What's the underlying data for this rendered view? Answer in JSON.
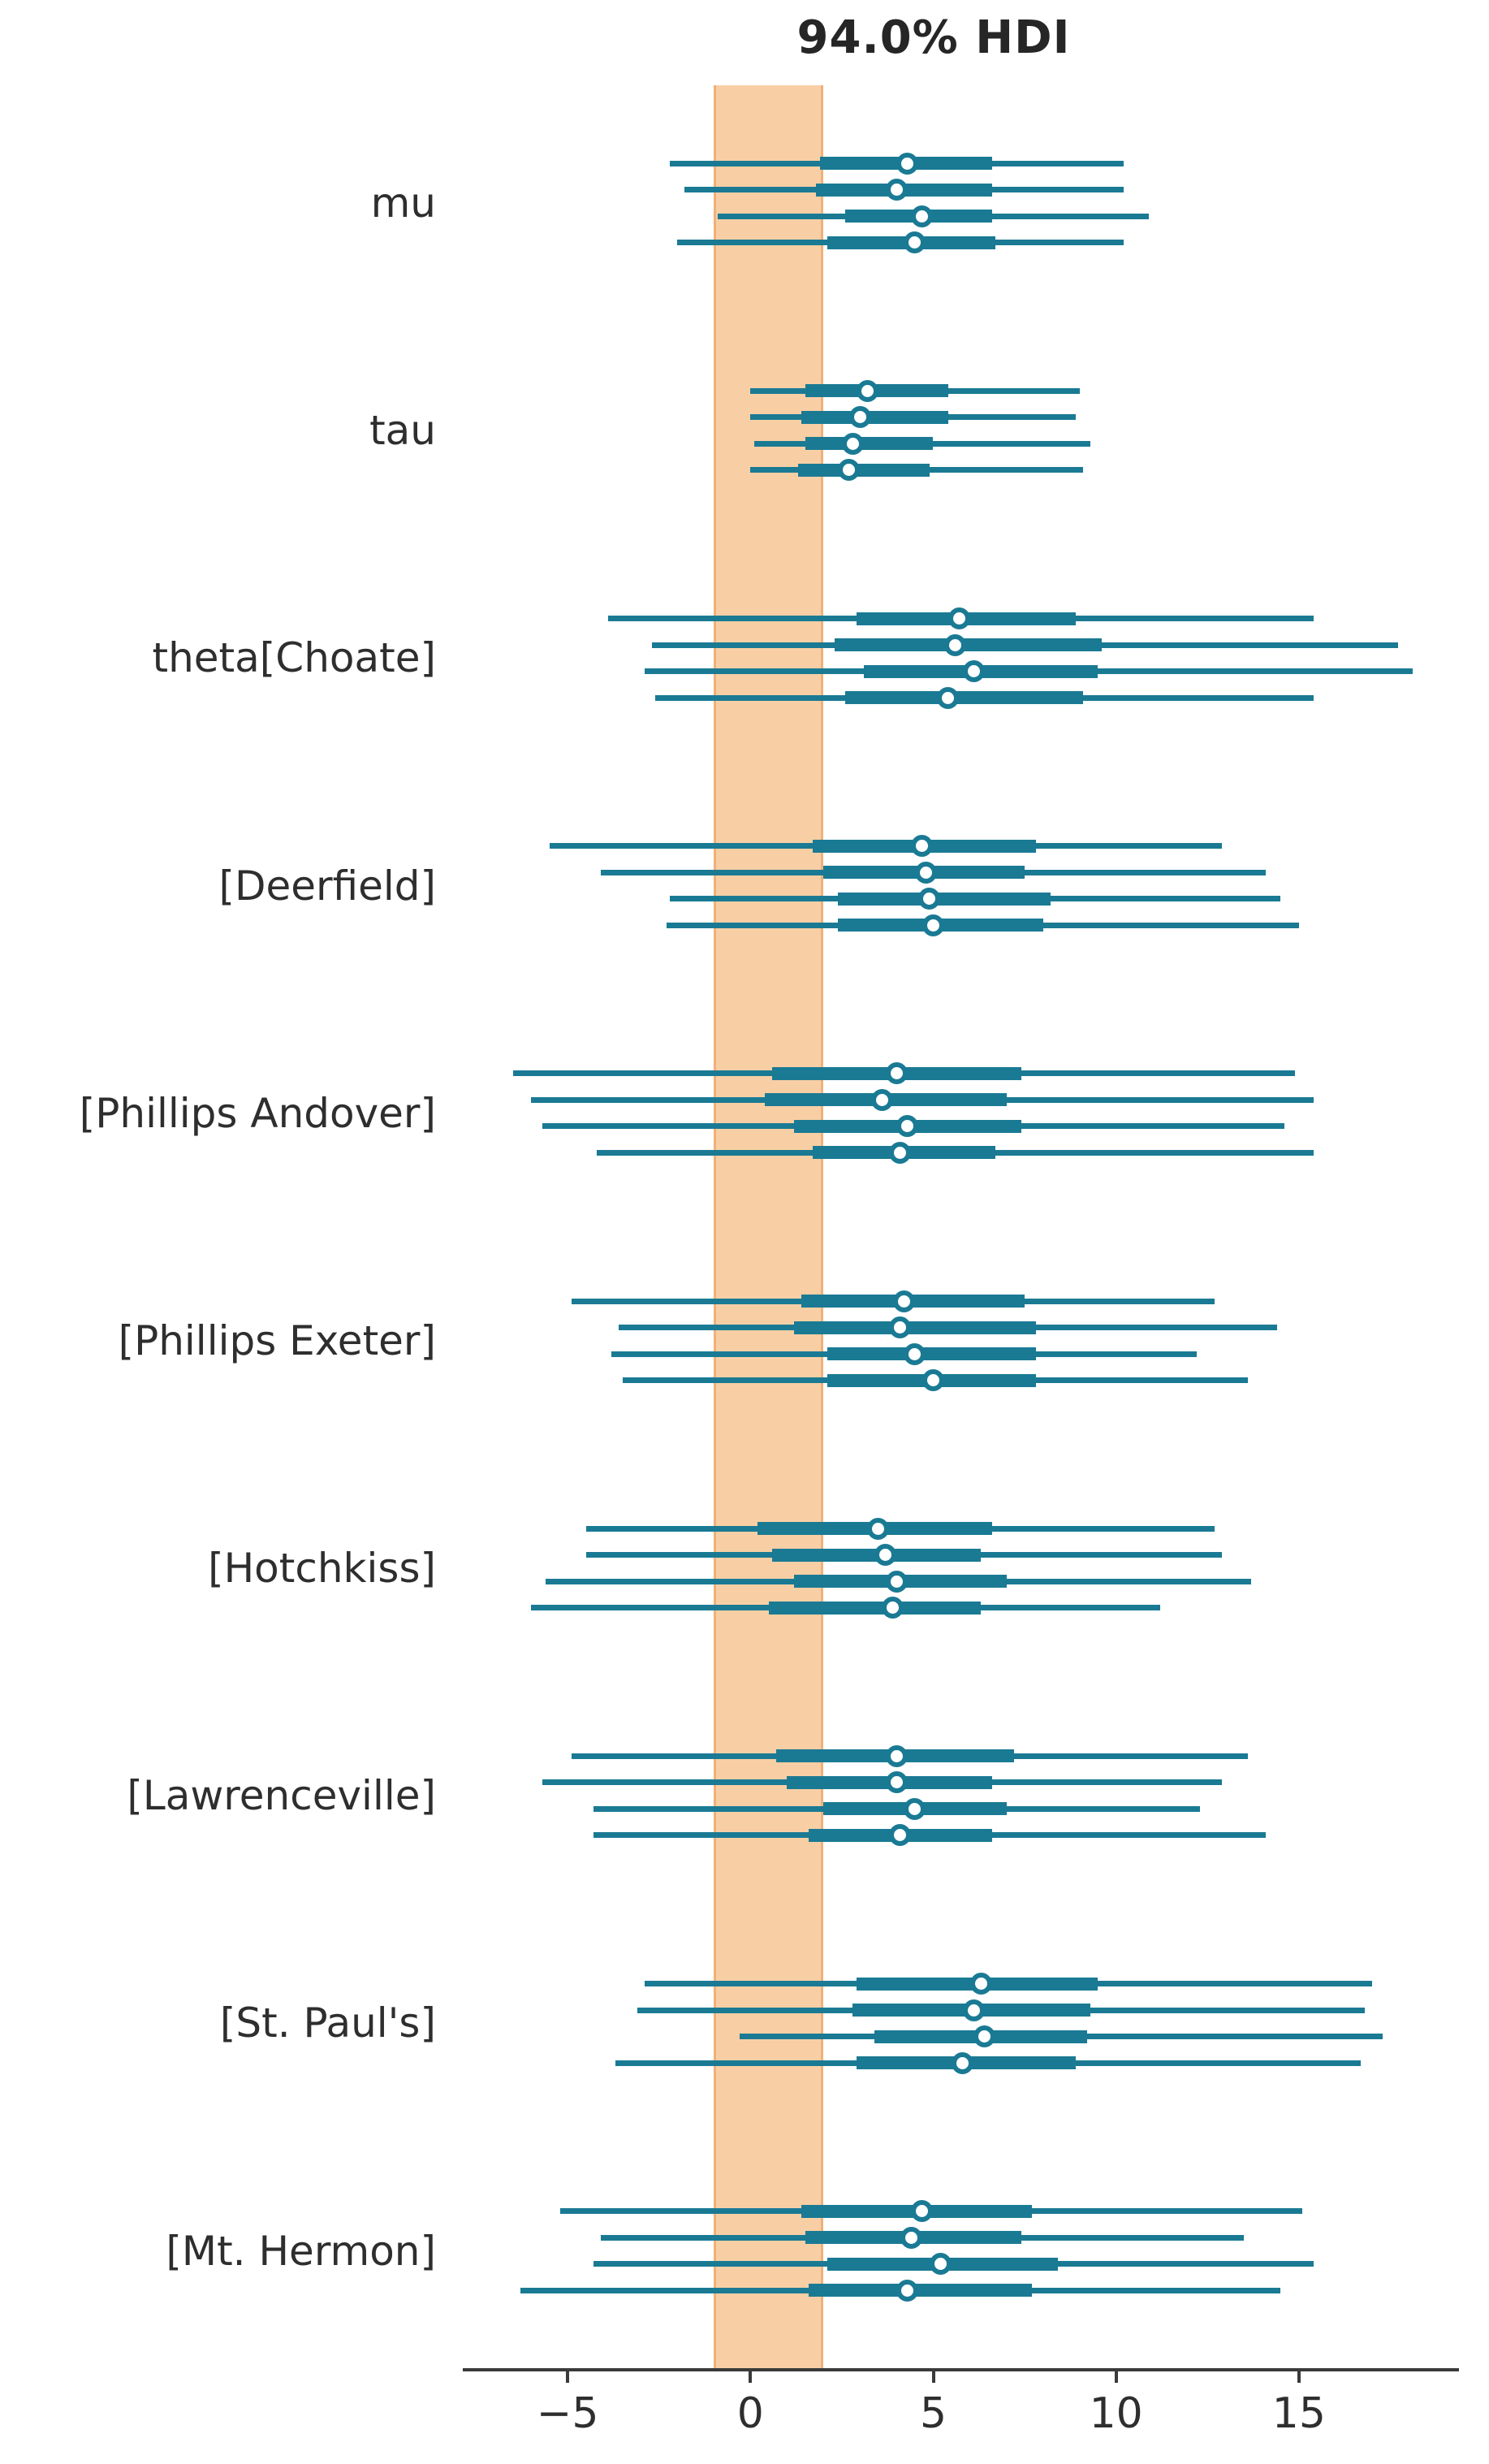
{
  "title": "94.0% HDI",
  "colors": {
    "line": "#1a7a94",
    "band_fill": "#f8cfa4",
    "band_edge": "#f0b07a",
    "axis": "#3a3a3a",
    "text": "#2e2e2e"
  },
  "axis": {
    "tick_values": [
      -5,
      0,
      5,
      10,
      15
    ],
    "tick_labels": [
      "−5",
      "0",
      "5",
      "10",
      "15"
    ],
    "xlim": [
      -7.8,
      19.6
    ]
  },
  "chart_data": {
    "type": "forest",
    "title": "94.0% HDI",
    "hdi_prob": 0.94,
    "rope": [
      -1,
      2
    ],
    "chains_per_parameter": 4,
    "legend_position": "none",
    "grid": false,
    "parameters": [
      {
        "label": "mu",
        "chains": [
          {
            "hdi": [
              -2.2,
              10.2
            ],
            "quartile": [
              1.9,
              6.6
            ],
            "point": 4.3
          },
          {
            "hdi": [
              -1.8,
              10.2
            ],
            "quartile": [
              1.8,
              6.6
            ],
            "point": 4.0
          },
          {
            "hdi": [
              -0.9,
              10.9
            ],
            "quartile": [
              2.6,
              6.6
            ],
            "point": 4.7
          },
          {
            "hdi": [
              -2.0,
              10.2
            ],
            "quartile": [
              2.1,
              6.7
            ],
            "point": 4.5
          }
        ]
      },
      {
        "label": "tau",
        "chains": [
          {
            "hdi": [
              0.0,
              9.0
            ],
            "quartile": [
              1.5,
              5.4
            ],
            "point": 3.2
          },
          {
            "hdi": [
              0.0,
              8.9
            ],
            "quartile": [
              1.4,
              5.4
            ],
            "point": 3.0
          },
          {
            "hdi": [
              0.1,
              9.3
            ],
            "quartile": [
              1.5,
              5.0
            ],
            "point": 2.8
          },
          {
            "hdi": [
              0.0,
              9.1
            ],
            "quartile": [
              1.3,
              4.9
            ],
            "point": 2.7
          }
        ]
      },
      {
        "label": "theta[Choate]",
        "chains": [
          {
            "hdi": [
              -3.9,
              15.4
            ],
            "quartile": [
              2.9,
              8.9
            ],
            "point": 5.7
          },
          {
            "hdi": [
              -2.7,
              17.7
            ],
            "quartile": [
              2.3,
              9.6
            ],
            "point": 5.6
          },
          {
            "hdi": [
              -2.9,
              18.1
            ],
            "quartile": [
              3.1,
              9.5
            ],
            "point": 6.1
          },
          {
            "hdi": [
              -2.6,
              15.4
            ],
            "quartile": [
              2.6,
              9.1
            ],
            "point": 5.4
          }
        ]
      },
      {
        "label": "[Deerfield]",
        "chains": [
          {
            "hdi": [
              -5.5,
              12.9
            ],
            "quartile": [
              1.7,
              7.8
            ],
            "point": 4.7
          },
          {
            "hdi": [
              -4.1,
              14.1
            ],
            "quartile": [
              2.0,
              7.5
            ],
            "point": 4.8
          },
          {
            "hdi": [
              -2.2,
              14.5
            ],
            "quartile": [
              2.4,
              8.2
            ],
            "point": 4.9
          },
          {
            "hdi": [
              -2.3,
              15.0
            ],
            "quartile": [
              2.4,
              8.0
            ],
            "point": 5.0
          }
        ]
      },
      {
        "label": "[Phillips Andover]",
        "chains": [
          {
            "hdi": [
              -6.5,
              14.9
            ],
            "quartile": [
              0.6,
              7.4
            ],
            "point": 4.0
          },
          {
            "hdi": [
              -6.0,
              15.4
            ],
            "quartile": [
              0.4,
              7.0
            ],
            "point": 3.6
          },
          {
            "hdi": [
              -5.7,
              14.6
            ],
            "quartile": [
              1.2,
              7.4
            ],
            "point": 4.3
          },
          {
            "hdi": [
              -4.2,
              15.4
            ],
            "quartile": [
              1.7,
              6.7
            ],
            "point": 4.1
          }
        ]
      },
      {
        "label": "[Phillips Exeter]",
        "chains": [
          {
            "hdi": [
              -4.9,
              12.7
            ],
            "quartile": [
              1.4,
              7.5
            ],
            "point": 4.2
          },
          {
            "hdi": [
              -3.6,
              14.4
            ],
            "quartile": [
              1.2,
              7.8
            ],
            "point": 4.1
          },
          {
            "hdi": [
              -3.8,
              12.2
            ],
            "quartile": [
              2.1,
              7.8
            ],
            "point": 4.5
          },
          {
            "hdi": [
              -3.5,
              13.6
            ],
            "quartile": [
              2.1,
              7.8
            ],
            "point": 5.0
          }
        ]
      },
      {
        "label": "[Hotchkiss]",
        "chains": [
          {
            "hdi": [
              -4.5,
              12.7
            ],
            "quartile": [
              0.2,
              6.6
            ],
            "point": 3.5
          },
          {
            "hdi": [
              -4.5,
              12.9
            ],
            "quartile": [
              0.6,
              6.3
            ],
            "point": 3.7
          },
          {
            "hdi": [
              -5.6,
              13.7
            ],
            "quartile": [
              1.2,
              7.0
            ],
            "point": 4.0
          },
          {
            "hdi": [
              -6.0,
              11.2
            ],
            "quartile": [
              0.5,
              6.3
            ],
            "point": 3.9
          }
        ]
      },
      {
        "label": "[Lawrenceville]",
        "chains": [
          {
            "hdi": [
              -4.9,
              13.6
            ],
            "quartile": [
              0.7,
              7.2
            ],
            "point": 4.0
          },
          {
            "hdi": [
              -5.7,
              12.9
            ],
            "quartile": [
              1.0,
              6.6
            ],
            "point": 4.0
          },
          {
            "hdi": [
              -4.3,
              12.3
            ],
            "quartile": [
              2.0,
              7.0
            ],
            "point": 4.5
          },
          {
            "hdi": [
              -4.3,
              14.1
            ],
            "quartile": [
              1.6,
              6.6
            ],
            "point": 4.1
          }
        ]
      },
      {
        "label": "[St. Paul's]",
        "chains": [
          {
            "hdi": [
              -2.9,
              17.0
            ],
            "quartile": [
              2.9,
              9.5
            ],
            "point": 6.3
          },
          {
            "hdi": [
              -3.1,
              16.8
            ],
            "quartile": [
              2.8,
              9.3
            ],
            "point": 6.1
          },
          {
            "hdi": [
              -0.3,
              17.3
            ],
            "quartile": [
              3.4,
              9.2
            ],
            "point": 6.4
          },
          {
            "hdi": [
              -3.7,
              16.7
            ],
            "quartile": [
              2.9,
              8.9
            ],
            "point": 5.8
          }
        ]
      },
      {
        "label": "[Mt. Hermon]",
        "chains": [
          {
            "hdi": [
              -5.2,
              15.1
            ],
            "quartile": [
              1.4,
              7.7
            ],
            "point": 4.7
          },
          {
            "hdi": [
              -4.1,
              13.5
            ],
            "quartile": [
              1.5,
              7.4
            ],
            "point": 4.4
          },
          {
            "hdi": [
              -4.3,
              15.4
            ],
            "quartile": [
              2.1,
              8.4
            ],
            "point": 5.2
          },
          {
            "hdi": [
              -6.3,
              14.5
            ],
            "quartile": [
              1.6,
              7.7
            ],
            "point": 4.3
          }
        ]
      }
    ]
  }
}
